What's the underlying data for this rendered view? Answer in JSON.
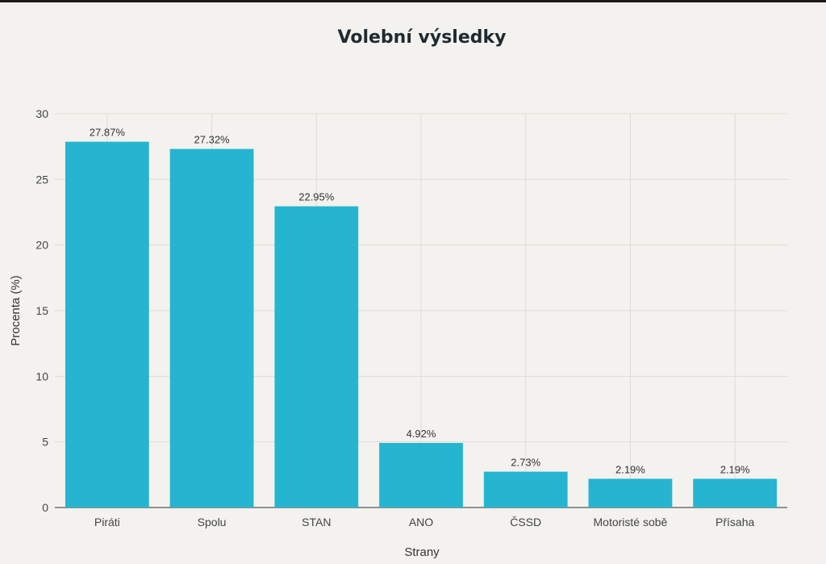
{
  "chart_data": {
    "type": "bar",
    "title": "Volební výsledky",
    "xlabel": "Strany",
    "ylabel": "Procenta (%)",
    "categories": [
      "Piráti",
      "Spolu",
      "STAN",
      "ANO",
      "ČSSD",
      "Motoristé sobě",
      "Přísaha"
    ],
    "values": [
      27.87,
      27.32,
      22.95,
      4.92,
      2.73,
      2.19,
      2.19
    ],
    "value_labels": [
      "27.87%",
      "27.32%",
      "22.95%",
      "4.92%",
      "2.73%",
      "2.19%",
      "2.19%"
    ],
    "ylim": [
      0,
      30
    ],
    "yticks": [
      0,
      5,
      10,
      15,
      20,
      25,
      30
    ],
    "grid": true,
    "bar_color": "#25b5d0"
  }
}
